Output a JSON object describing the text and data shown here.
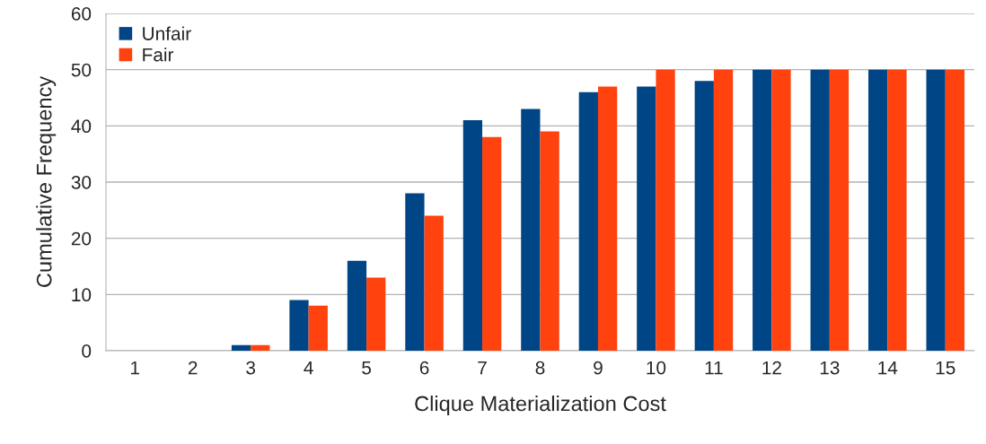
{
  "chart_data": {
    "type": "bar",
    "xlabel": "Clique Materialization Cost",
    "ylabel": "Cumulative Frequency",
    "categories": [
      "1",
      "2",
      "3",
      "4",
      "5",
      "6",
      "7",
      "8",
      "9",
      "10",
      "11",
      "12",
      "13",
      "14",
      "15"
    ],
    "series": [
      {
        "name": "Unfair",
        "color": "#004586",
        "values": [
          0,
          0,
          1,
          9,
          16,
          28,
          41,
          43,
          46,
          47,
          48,
          50,
          50,
          50,
          50
        ]
      },
      {
        "name": "Fair",
        "color": "#ff420e",
        "values": [
          0,
          0,
          1,
          8,
          13,
          24,
          38,
          39,
          47,
          50,
          50,
          50,
          50,
          50,
          50
        ]
      }
    ],
    "ylim": [
      0,
      60
    ],
    "yticks": [
      0,
      10,
      20,
      30,
      40,
      50,
      60
    ],
    "grid": "y",
    "legend": "top left"
  }
}
